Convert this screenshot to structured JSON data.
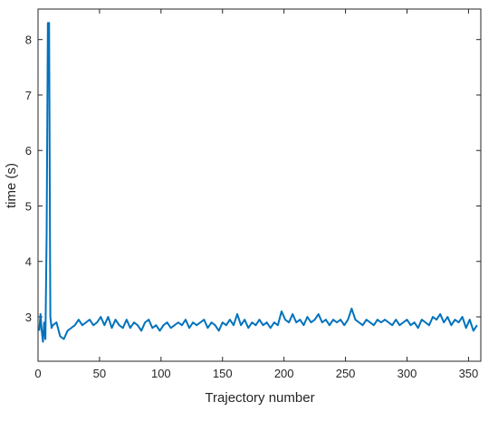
{
  "chart_data": {
    "type": "line",
    "xlabel": "Trajectory number",
    "ylabel": "time (s)",
    "x": [
      1,
      2,
      3,
      4,
      5,
      6,
      7,
      8,
      9,
      10,
      11,
      12,
      15,
      18,
      21,
      24,
      27,
      30,
      33,
      36,
      39,
      42,
      45,
      48,
      51,
      54,
      57,
      60,
      63,
      66,
      69,
      72,
      75,
      78,
      81,
      84,
      87,
      90,
      93,
      96,
      99,
      102,
      105,
      108,
      111,
      114,
      117,
      120,
      123,
      126,
      129,
      132,
      135,
      138,
      141,
      144,
      147,
      150,
      153,
      156,
      159,
      162,
      165,
      168,
      171,
      174,
      177,
      180,
      183,
      186,
      189,
      192,
      195,
      198,
      201,
      204,
      207,
      210,
      213,
      216,
      219,
      222,
      225,
      228,
      231,
      234,
      237,
      240,
      243,
      246,
      249,
      252,
      255,
      258,
      261,
      264,
      267,
      270,
      273,
      276,
      279,
      282,
      285,
      288,
      291,
      294,
      297,
      300,
      303,
      306,
      309,
      312,
      315,
      318,
      321,
      324,
      327,
      330,
      333,
      336,
      339,
      342,
      345,
      348,
      351,
      354,
      357
    ],
    "series": [
      {
        "color": "#0072bd",
        "values": [
          2.75,
          3.05,
          2.75,
          2.55,
          2.9,
          2.6,
          4.5,
          8.3,
          8.3,
          3.0,
          2.8,
          2.85,
          2.9,
          2.65,
          2.6,
          2.75,
          2.8,
          2.85,
          2.95,
          2.85,
          2.9,
          2.95,
          2.85,
          2.9,
          3.0,
          2.85,
          3.0,
          2.8,
          2.95,
          2.85,
          2.8,
          2.95,
          2.8,
          2.9,
          2.85,
          2.75,
          2.9,
          2.95,
          2.8,
          2.85,
          2.75,
          2.85,
          2.9,
          2.8,
          2.85,
          2.9,
          2.85,
          2.95,
          2.8,
          2.9,
          2.85,
          2.9,
          2.95,
          2.8,
          2.9,
          2.85,
          2.75,
          2.9,
          2.85,
          2.95,
          2.85,
          3.05,
          2.85,
          2.95,
          2.8,
          2.9,
          2.85,
          2.95,
          2.85,
          2.9,
          2.8,
          2.9,
          2.85,
          3.1,
          2.95,
          2.9,
          3.05,
          2.9,
          2.95,
          2.85,
          3.0,
          2.9,
          2.95,
          3.05,
          2.9,
          2.95,
          2.85,
          2.95,
          2.9,
          2.95,
          2.85,
          2.95,
          3.15,
          2.95,
          2.9,
          2.85,
          2.95,
          2.9,
          2.85,
          2.95,
          2.9,
          2.95,
          2.9,
          2.85,
          2.95,
          2.85,
          2.9,
          2.95,
          2.85,
          2.9,
          2.8,
          2.95,
          2.9,
          2.85,
          3.0,
          2.95,
          3.05,
          2.9,
          3.0,
          2.85,
          2.95,
          2.9,
          3.0,
          2.8,
          2.95,
          2.75,
          2.85
        ]
      }
    ],
    "xlim": [
      0,
      360
    ],
    "xticks": [
      0,
      50,
      100,
      150,
      200,
      250,
      300,
      350
    ],
    "ylim": [
      2.2,
      8.55
    ],
    "yticks": [
      3,
      4,
      5,
      6,
      7,
      8
    ]
  }
}
